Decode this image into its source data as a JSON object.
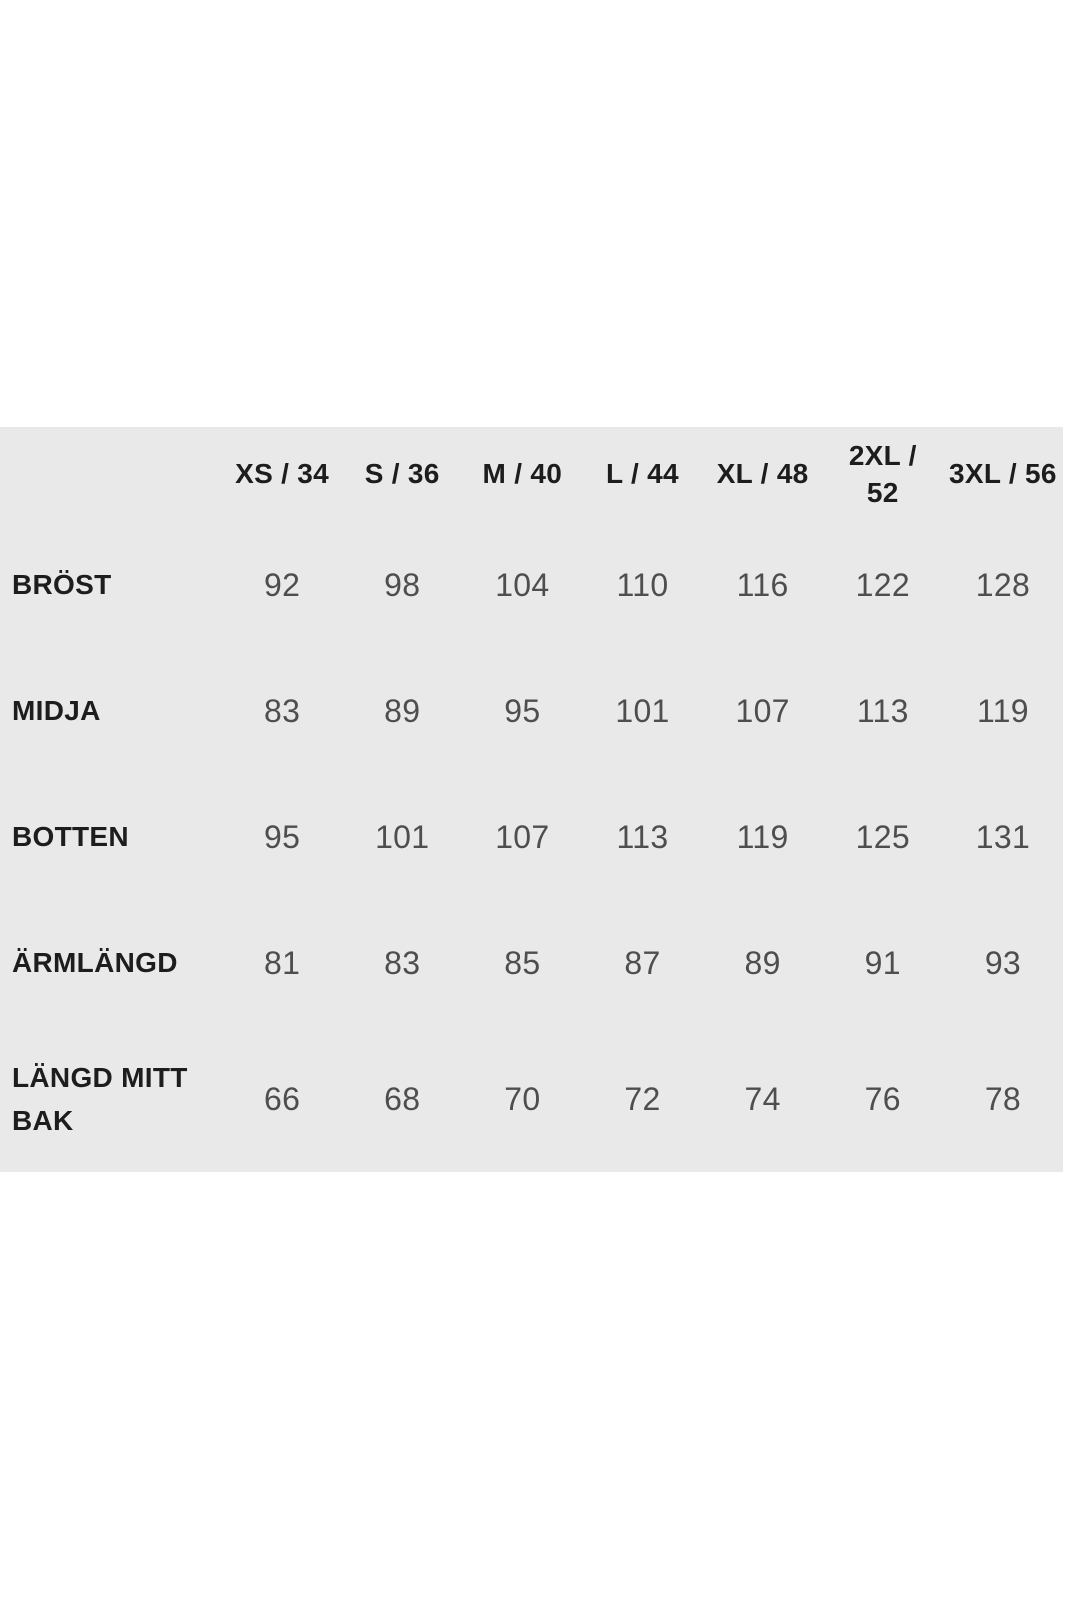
{
  "page": {
    "background_color": "#ffffff"
  },
  "size_table": {
    "panel_background_color": "#e9e9e9",
    "header_text_color": "#1d1d1d",
    "value_text_color": "#4e4e4e",
    "unit_note": "",
    "columns": [
      "XS / 34",
      "S / 36",
      "M / 40",
      "L / 44",
      "XL / 48",
      "2XL /\n52",
      "3XL / 56"
    ],
    "rows": [
      {
        "label": "BRÖST",
        "values": [
          92,
          98,
          104,
          110,
          116,
          122,
          128
        ]
      },
      {
        "label": "MIDJA",
        "values": [
          83,
          89,
          95,
          101,
          107,
          113,
          119
        ]
      },
      {
        "label": "BOTTEN",
        "values": [
          95,
          101,
          107,
          113,
          119,
          125,
          131
        ]
      },
      {
        "label": "ÄRMLÄNGD",
        "values": [
          81,
          83,
          85,
          87,
          89,
          91,
          93
        ]
      },
      {
        "label": "LÄNGD MITT\nBAK",
        "values": [
          66,
          68,
          70,
          72,
          74,
          76,
          78
        ]
      }
    ]
  }
}
